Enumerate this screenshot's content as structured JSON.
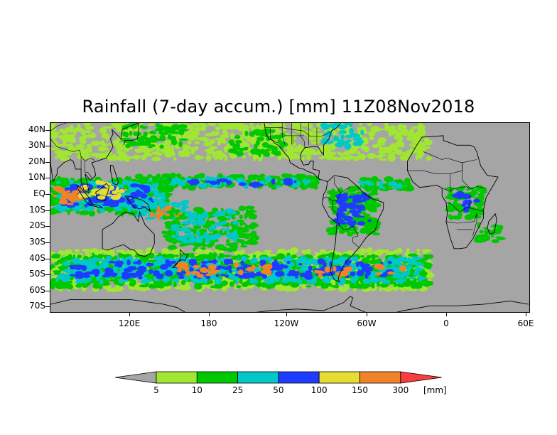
{
  "title": "Rainfall (7-day accum.) [mm] 11Z08Nov2018",
  "latitude_labels": [
    "40N",
    "30N",
    "20N",
    "10N",
    "EQ",
    "10S",
    "20S",
    "30S",
    "40S",
    "50S",
    "60S",
    "70S"
  ],
  "longitude_labels": [
    "120E",
    "180",
    "120W",
    "60W",
    "0",
    "60E"
  ],
  "colorbar": {
    "unit": "[mm]",
    "thresholds": [
      "5",
      "10",
      "25",
      "50",
      "100",
      "150",
      "300"
    ],
    "colors": [
      "#a5a5a5",
      "#a0e632",
      "#00c800",
      "#00c8c8",
      "#1e3cff",
      "#e6dc32",
      "#f08228",
      "#fa3c3c"
    ]
  },
  "land_color": "#a5a5a5",
  "coastline_color": "#000000"
}
